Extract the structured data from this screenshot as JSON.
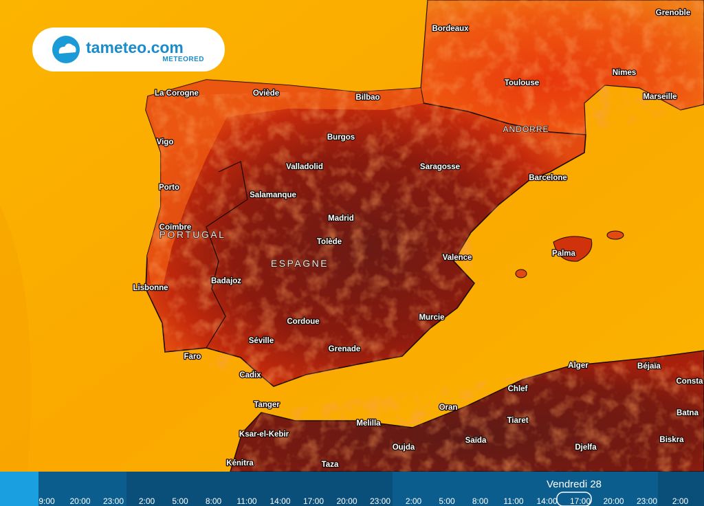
{
  "logo": {
    "name": "tameteo.com",
    "tagline": "METEORED"
  },
  "cities": [
    "La Corogne",
    "Oviède",
    "Bilbao",
    "Bordeaux",
    "Toulouse",
    "Nimes",
    "Marseille",
    "Grenoble",
    "Burgos",
    "Vigo",
    "Valladolid",
    "Saragosse",
    "Barcelone",
    "Porto",
    "Salamanque",
    "Madrid",
    "Coïmbre",
    "Tolède",
    "Valence",
    "Palma",
    "Lisbonne",
    "Badajoz",
    "Cordoue",
    "Murcie",
    "Séville",
    "Grenade",
    "Faro",
    "Cadix",
    "Alger",
    "Béjaïa",
    "Consta",
    "Chlef",
    "Oran",
    "Tanger",
    "Batna",
    "Tiaret",
    "Melilla",
    "Ksar-el-Kebir",
    "Saïda",
    "Biskra",
    "Oujda",
    "Djelfa",
    "Kénitra",
    "Taza"
  ],
  "regions": [
    "PORTUGAL",
    "ESPAGNE",
    "ANDORRE"
  ],
  "timeline": {
    "day": "Vendredi 28",
    "times": [
      "9:00",
      "20:00",
      "23:00",
      "2:00",
      "5:00",
      "8:00",
      "11:00",
      "14:00",
      "17:00",
      "20:00",
      "23:00",
      "2:00",
      "5:00",
      "8:00",
      "11:00",
      "14:00",
      "17:00",
      "20:00",
      "23:00",
      "2:00"
    ]
  }
}
